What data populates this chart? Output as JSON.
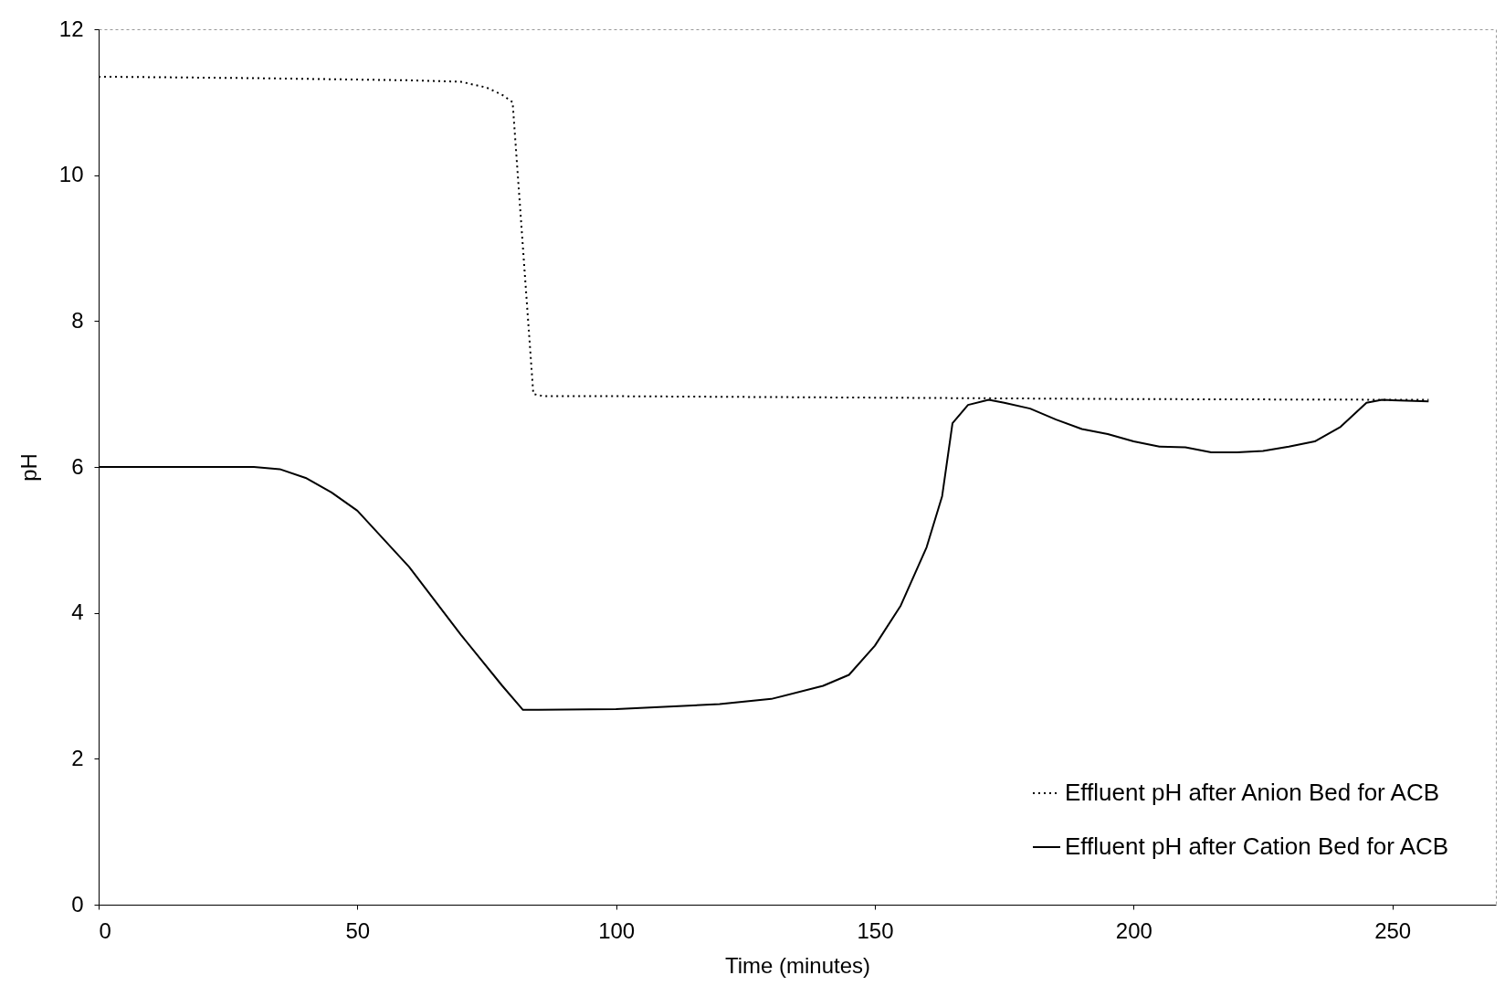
{
  "chart_data": {
    "type": "line",
    "xlabel": "Time (minutes)",
    "ylabel": "pH",
    "xlim": [
      0,
      270
    ],
    "ylim": [
      0,
      12
    ],
    "xticks": [
      0,
      50,
      100,
      150,
      200,
      250
    ],
    "yticks": [
      0,
      2,
      4,
      6,
      8,
      10,
      12
    ],
    "grid": false,
    "legend": "bottom right",
    "marker": "none",
    "series": [
      {
        "name": "Effluent pH after Anion Bed for ACB",
        "color": "#000000",
        "line_style": "dotted",
        "x": [
          0,
          30,
          60,
          70,
          75,
          78,
          80,
          82,
          84,
          86,
          100,
          150,
          200,
          257
        ],
        "values": [
          11.35,
          11.33,
          11.3,
          11.28,
          11.2,
          11.1,
          11.0,
          9.0,
          7.0,
          6.97,
          6.97,
          6.95,
          6.93,
          6.92
        ]
      },
      {
        "name": "Effluent pH after Cation Bed for ACB",
        "color": "#000000",
        "line_style": "solid",
        "x": [
          0,
          30,
          35,
          40,
          45,
          50,
          60,
          70,
          78,
          82,
          85,
          100,
          120,
          130,
          140,
          145,
          150,
          155,
          160,
          163,
          165,
          168,
          172,
          175,
          180,
          185,
          190,
          195,
          200,
          205,
          210,
          215,
          220,
          225,
          230,
          235,
          240,
          245,
          248,
          257
        ],
        "values": [
          6.0,
          6.0,
          5.97,
          5.85,
          5.65,
          5.4,
          4.63,
          3.7,
          3.0,
          2.67,
          2.67,
          2.68,
          2.75,
          2.82,
          3.0,
          3.15,
          3.55,
          4.1,
          4.9,
          5.6,
          6.6,
          6.85,
          6.92,
          6.88,
          6.8,
          6.65,
          6.52,
          6.45,
          6.35,
          6.28,
          6.27,
          6.2,
          6.2,
          6.22,
          6.28,
          6.35,
          6.55,
          6.88,
          6.92,
          6.9
        ]
      }
    ]
  }
}
